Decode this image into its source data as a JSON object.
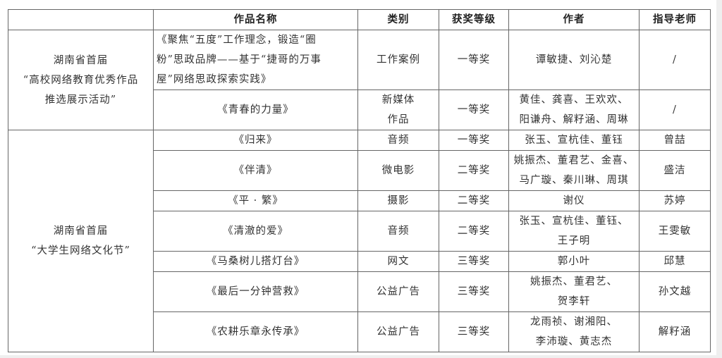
{
  "headers": [
    "",
    "作品名称",
    "类别",
    "获奖等级",
    "作者",
    "指导老师"
  ],
  "groups": [
    {
      "event": "湖南省首届\n“高校网络教育优秀作品\n推选展示活动”",
      "rows": [
        {
          "name": "《聚焦“五度”工作理念，锻造“圈\n粉”思政品牌——基于“捷哥的万事\n屋”网络思政探索实践》",
          "category": "工作案例",
          "award": "一等奖",
          "authors": "谭敏捷、刘沁楚",
          "teacher": "/"
        },
        {
          "name": "《青春的力量》",
          "category": "新媒体\n作品",
          "award": "一等奖",
          "authors": "黄佳、龚喜、王欢欢、\n阳谦舟、解籽涵、周琳",
          "teacher": "/"
        }
      ]
    },
    {
      "event": "湖南省首届\n“大学生网络文化节”",
      "rows": [
        {
          "name": "《归来》",
          "category": "音频",
          "award": "一等奖",
          "authors": "张玉、宣杭佳、董钰",
          "teacher": "曾喆"
        },
        {
          "name": "《伴清》",
          "category": "微电影",
          "award": "二等奖",
          "authors": "姚振杰、董君艺、金喜、\n马广璇、秦川琳、周琪",
          "teacher": "盛洁"
        },
        {
          "name": "《平 · 繁》",
          "category": "摄影",
          "award": "二等奖",
          "authors": "谢仪",
          "teacher": "苏婷"
        },
        {
          "name": "《清澈的爱》",
          "category": "音频",
          "award": "二等奖",
          "authors": "张玉、宣杭佳、董钰、\n王子明",
          "teacher": "王雯敏"
        },
        {
          "name": "《马桑树儿搭灯台》",
          "category": "网文",
          "award": "三等奖",
          "authors": "郭小叶",
          "teacher": "邱慧"
        },
        {
          "name": "《最后一分钟营救》",
          "category": "公益广告",
          "award": "三等奖",
          "authors": "姚振杰、董君艺、\n贺李轩",
          "teacher": "孙文越"
        },
        {
          "name": "《农耕乐章永传承》",
          "category": "公益广告",
          "award": "三等奖",
          "authors": "龙雨祯、谢湘阳、\n李沛璇、黄志杰",
          "teacher": "解籽涵"
        }
      ]
    }
  ]
}
